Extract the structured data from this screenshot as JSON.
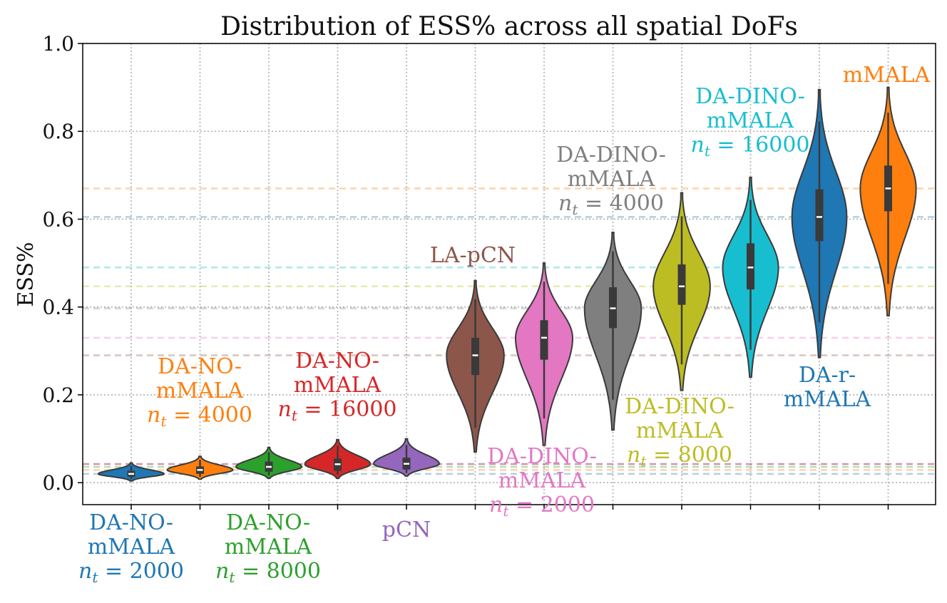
{
  "chart_data": {
    "type": "violin",
    "title": "Distribution of ESS% across all spatial DoFs",
    "xlabel": "",
    "ylabel": "ESS%",
    "ylim": [
      -0.05,
      1.0
    ],
    "yticks": [
      "0.0",
      "0.2",
      "0.4",
      "0.6",
      "0.8",
      "1.0"
    ],
    "ytick_values": [
      0.0,
      0.2,
      0.4,
      0.6,
      0.8,
      1.0
    ],
    "grid": true,
    "series": [
      {
        "name": "DA-NO-mMALA n_t = 2000",
        "label_lines": [
          "DA-NO-",
          "mMALA",
          "n_t = 2000"
        ],
        "color": "#1f77b4",
        "median": 0.02,
        "q1": 0.013,
        "q3": 0.027,
        "min": 0.004,
        "max": 0.045,
        "label_position": "below"
      },
      {
        "name": "DA-NO-mMALA n_t = 4000",
        "label_lines": [
          "DA-NO-",
          "mMALA",
          "n_t = 4000"
        ],
        "color": "#ff7f0e",
        "median": 0.029,
        "q1": 0.02,
        "q3": 0.037,
        "min": 0.008,
        "max": 0.06,
        "label_position": "above"
      },
      {
        "name": "DA-NO-mMALA n_t = 8000",
        "label_lines": [
          "DA-NO-",
          "mMALA",
          "n_t = 8000"
        ],
        "color": "#2ca02c",
        "median": 0.036,
        "q1": 0.025,
        "q3": 0.048,
        "min": 0.01,
        "max": 0.08,
        "label_position": "below"
      },
      {
        "name": "DA-NO-mMALA n_t = 16000",
        "label_lines": [
          "DA-NO-",
          "mMALA",
          "n_t = 16000"
        ],
        "color": "#d62728",
        "median": 0.042,
        "q1": 0.027,
        "q3": 0.055,
        "min": 0.01,
        "max": 0.098,
        "label_position": "above"
      },
      {
        "name": "pCN",
        "label_lines": [
          "pCN"
        ],
        "color": "#9467bd",
        "median": 0.043,
        "q1": 0.03,
        "q3": 0.057,
        "min": 0.015,
        "max": 0.1,
        "label_position": "below"
      },
      {
        "name": "LA-pCN",
        "label_lines": [
          "LA-pCN"
        ],
        "color": "#8c564b",
        "median": 0.29,
        "q1": 0.245,
        "q3": 0.33,
        "min": 0.07,
        "max": 0.46,
        "label_position": "above"
      },
      {
        "name": "DA-DINO-mMALA n_t = 2000",
        "label_lines": [
          "DA-DINO-",
          "mMALA",
          "n_t = 2000"
        ],
        "color": "#e377c2",
        "median": 0.33,
        "q1": 0.28,
        "q3": 0.37,
        "min": 0.085,
        "max": 0.5,
        "label_position": "below"
      },
      {
        "name": "DA-DINO-mMALA n_t = 4000",
        "label_lines": [
          "DA-DINO-",
          "mMALA",
          "n_t = 4000"
        ],
        "color": "#7f7f7f",
        "median": 0.397,
        "q1": 0.352,
        "q3": 0.445,
        "min": 0.12,
        "max": 0.57,
        "label_position": "above"
      },
      {
        "name": "DA-DINO-mMALA n_t = 8000",
        "label_lines": [
          "DA-DINO-",
          "mMALA",
          "n_t = 8000"
        ],
        "color": "#bcbd22",
        "median": 0.447,
        "q1": 0.405,
        "q3": 0.497,
        "min": 0.21,
        "max": 0.66,
        "label_position": "below"
      },
      {
        "name": "DA-DINO-mMALA n_t = 16000",
        "label_lines": [
          "DA-DINO-",
          "mMALA",
          "n_t = 16000"
        ],
        "color": "#17becf",
        "median": 0.49,
        "q1": 0.44,
        "q3": 0.545,
        "min": 0.24,
        "max": 0.695,
        "label_position": "above"
      },
      {
        "name": "DA-r-mMALA",
        "label_lines": [
          "DA-r-",
          "mMALA"
        ],
        "color": "#1f77b4",
        "median": 0.605,
        "q1": 0.55,
        "q3": 0.668,
        "min": 0.285,
        "max": 0.895,
        "label_position": "below"
      },
      {
        "name": "mMALA",
        "label_lines": [
          "mMALA"
        ],
        "color": "#ff7f0e",
        "median": 0.67,
        "q1": 0.618,
        "q3": 0.722,
        "min": 0.38,
        "max": 0.9,
        "label_position": "above"
      }
    ]
  }
}
